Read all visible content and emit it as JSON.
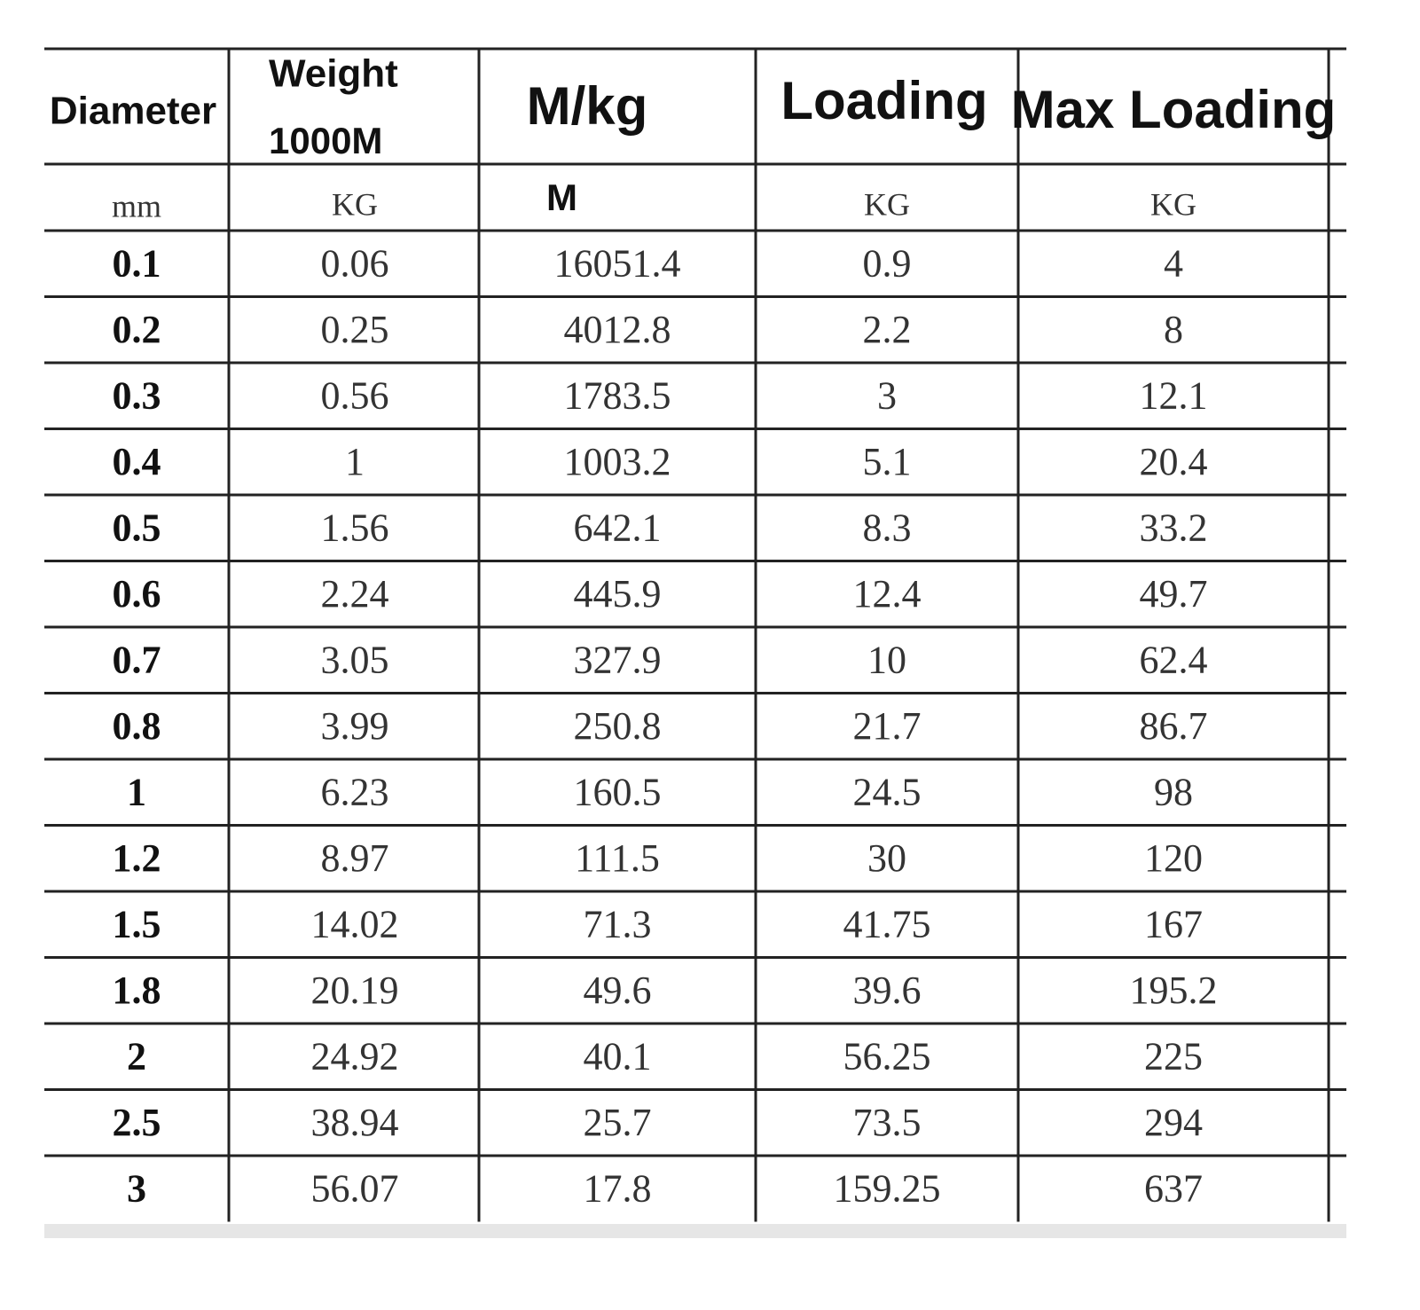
{
  "table": {
    "header": [
      [
        "Diameter"
      ],
      [
        "Weight",
        "1000M"
      ],
      [
        "M/kg"
      ],
      [
        "Loading"
      ],
      [
        "Max Loading"
      ]
    ],
    "units": [
      "mm",
      "KG",
      "M",
      "KG",
      "KG"
    ],
    "rows": [
      [
        "0.1",
        "0.06",
        "16051.4",
        "0.9",
        "4"
      ],
      [
        "0.2",
        "0.25",
        "4012.8",
        "2.2",
        "8"
      ],
      [
        "0.3",
        "0.56",
        "1783.5",
        "3",
        "12.1"
      ],
      [
        "0.4",
        "1",
        "1003.2",
        "5.1",
        "20.4"
      ],
      [
        "0.5",
        "1.56",
        "642.1",
        "8.3",
        "33.2"
      ],
      [
        "0.6",
        "2.24",
        "445.9",
        "12.4",
        "49.7"
      ],
      [
        "0.7",
        "3.05",
        "327.9",
        "10",
        "62.4"
      ],
      [
        "0.8",
        "3.99",
        "250.8",
        "21.7",
        "86.7"
      ],
      [
        "1",
        "6.23",
        "160.5",
        "24.5",
        "98"
      ],
      [
        "1.2",
        "8.97",
        "111.5",
        "30",
        "120"
      ],
      [
        "1.5",
        "14.02",
        "71.3",
        "41.75",
        "167"
      ],
      [
        "1.8",
        "20.19",
        "49.6",
        "39.6",
        "195.2"
      ],
      [
        "2",
        "24.92",
        "40.1",
        "56.25",
        "225"
      ],
      [
        "2.5",
        "38.94",
        "25.7",
        "73.5",
        "294"
      ],
      [
        "3",
        "56.07",
        "17.8",
        "159.25",
        "637"
      ]
    ]
  }
}
